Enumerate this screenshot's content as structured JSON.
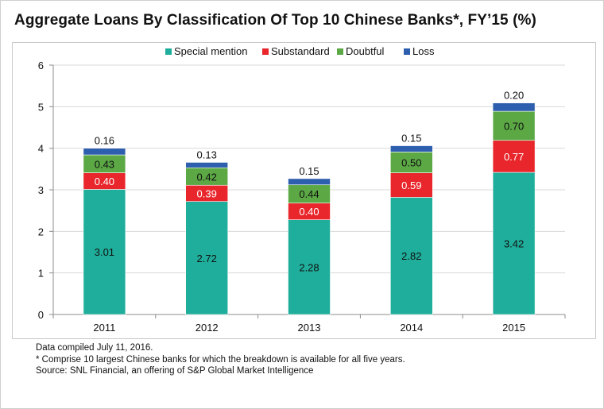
{
  "title": "Aggregate Loans By Classification Of Top 10 Chinese Banks*, FY’15 (%)",
  "colors": {
    "special_mention": "#1fae9b",
    "substandard": "#e8262b",
    "doubtful": "#5ba845",
    "loss": "#2d5fae"
  },
  "chart_data": {
    "type": "bar",
    "stacked": true,
    "categories": [
      "2011",
      "2012",
      "2013",
      "2014",
      "2015"
    ],
    "series": [
      {
        "name": "Special mention",
        "values": [
          3.01,
          2.72,
          2.28,
          2.82,
          3.42
        ],
        "labels": [
          "3.01",
          "2.72",
          "2.28",
          "2.82",
          "3.42"
        ]
      },
      {
        "name": "Substandard",
        "values": [
          0.4,
          0.39,
          0.4,
          0.59,
          0.77
        ],
        "labels": [
          "0.40",
          "0.39",
          "0.40",
          "0.59",
          "0.77"
        ]
      },
      {
        "name": "Doubtful",
        "values": [
          0.43,
          0.42,
          0.44,
          0.5,
          0.7
        ],
        "labels": [
          "0.43",
          "0.42",
          "0.44",
          "0.50",
          "0.70"
        ]
      },
      {
        "name": "Loss",
        "values": [
          0.16,
          0.13,
          0.15,
          0.15,
          0.2
        ],
        "labels": [
          "0.16",
          "0.13",
          "0.15",
          "0.15",
          "0.20"
        ]
      }
    ],
    "ylim": [
      0,
      6
    ],
    "yticks": [
      "0",
      "1",
      "2",
      "3",
      "4",
      "5",
      "6"
    ],
    "grid": true,
    "legend": "top-center",
    "xlabel": "",
    "ylabel": ""
  },
  "notes": {
    "compiled": "Data compiled July 11, 2016.",
    "footnote": "* Comprise 10 largest Chinese banks for which the breakdown is available for all five years.",
    "source": "Source: SNL Financial, an offering of S&P Global Market Intelligence"
  }
}
